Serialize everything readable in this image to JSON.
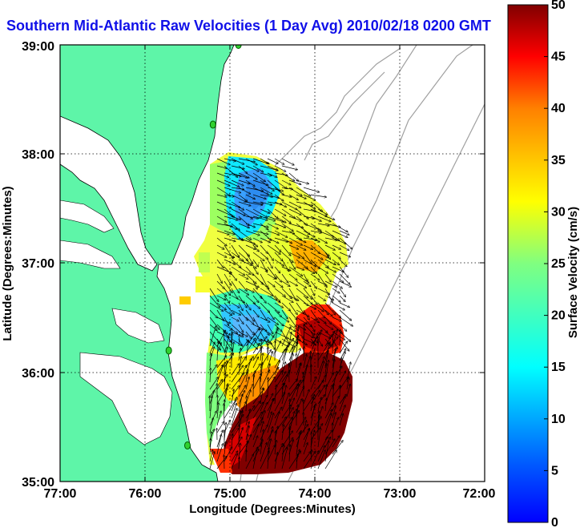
{
  "title": "Southern Mid-Atlantic Raw Velocities (1 Day Avg) 2010/02/18 0200 GMT",
  "map": {
    "xlabel": "Longitude (Degrees:Minutes)",
    "ylabel": "Latitude (Degrees:Minutes)",
    "lon_range": [
      -77,
      -72
    ],
    "lat_range": [
      35,
      39
    ],
    "x_ticks": [
      "77:00",
      "76:00",
      "75:00",
      "74:00",
      "73:00",
      "72:00"
    ],
    "y_ticks": [
      "35:00",
      "36:00",
      "37:00",
      "38:00",
      "39:00"
    ],
    "grid": "dotted",
    "land_color": "#5ef5a8",
    "stations": [
      {
        "lon": -74.9,
        "lat": 39.0
      },
      {
        "lon": -75.2,
        "lat": 38.27
      },
      {
        "lon": -75.72,
        "lat": 36.2
      },
      {
        "lon": -75.5,
        "lat": 35.33
      }
    ]
  },
  "colorbar": {
    "label": "Surface Velocity (cm/s)",
    "ticks": [
      "0",
      "5",
      "10",
      "15",
      "20",
      "25",
      "30",
      "35",
      "40",
      "45",
      "50"
    ],
    "min": 0,
    "max": 50,
    "colormap": "jet"
  }
}
